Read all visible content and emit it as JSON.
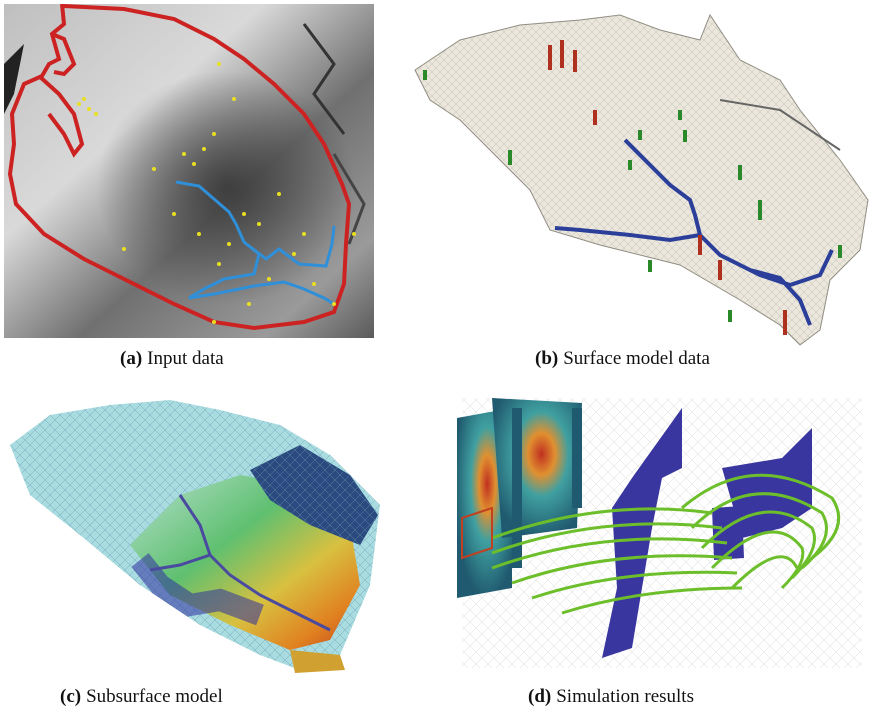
{
  "figure": {
    "panels": [
      {
        "id": "a",
        "tag": "(a)",
        "caption": "Input data"
      },
      {
        "id": "b",
        "tag": "(b)",
        "caption": "Surface model data"
      },
      {
        "id": "c",
        "tag": "(c)",
        "caption": "Subsurface model"
      },
      {
        "id": "d",
        "tag": "(d)",
        "caption": "Simulation results"
      }
    ]
  },
  "colors": {
    "boundary": "#cc2222",
    "river": "#2f8fd8",
    "points": "#e8e020",
    "river_dark": "#2b3f9a",
    "streamlines": "#6cbf2a",
    "wall": "#3a36a0"
  }
}
